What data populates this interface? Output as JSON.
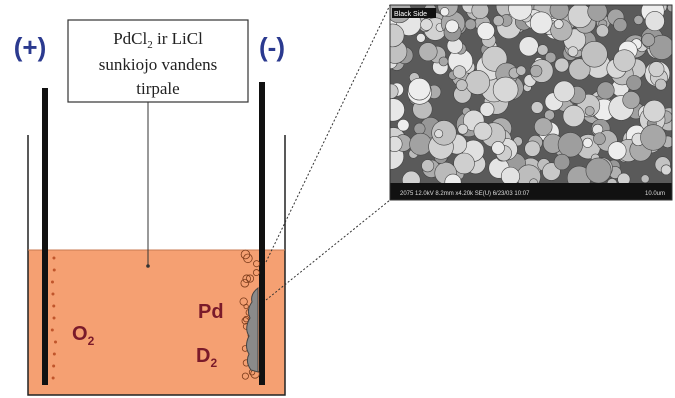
{
  "electrodes": {
    "anode": "(+)",
    "cathode": "(-)"
  },
  "label": {
    "line1": {
      "base": "PdCl",
      "sub": "2",
      "tail": " ir LiCl"
    },
    "line2": "sunkiojo vandens",
    "line3": "tirpale"
  },
  "species": {
    "pd": "Pd",
    "o2": {
      "base": "O",
      "sub": "2"
    },
    "d2": {
      "base": "D",
      "sub": "2"
    }
  },
  "micrograph": {
    "tag": "Black Side",
    "info": "2075 12.0kV 8.2mm x4.20k SE(U) 6/23/03 10:07",
    "scale": "10.0um"
  }
}
